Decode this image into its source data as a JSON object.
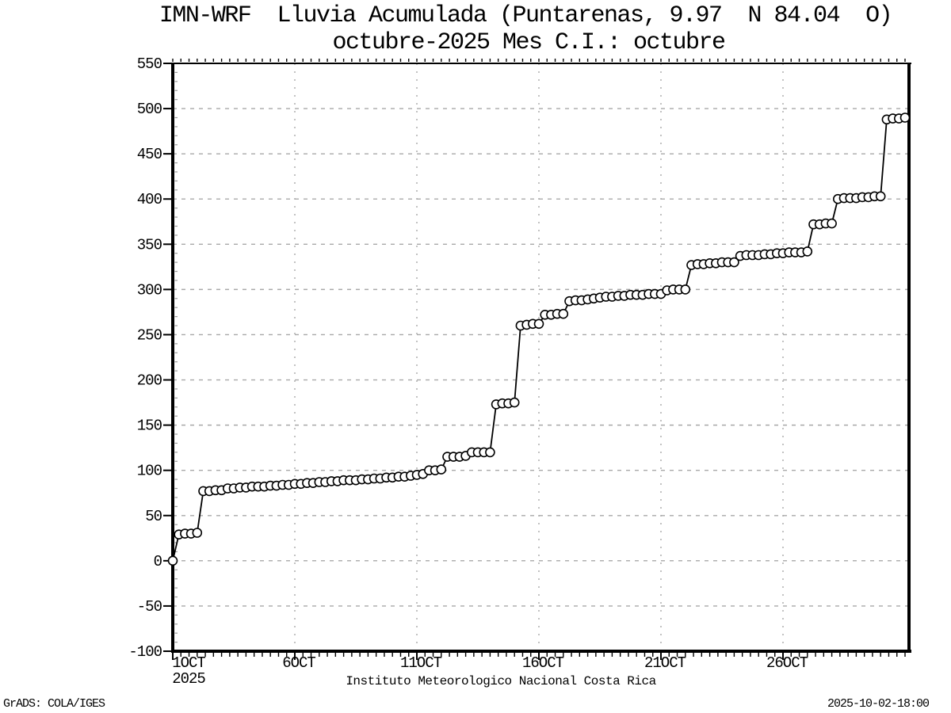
{
  "page": {
    "credit": "GrADS: COLA/IGES",
    "timestamp": "2025-10-02-18:00"
  },
  "chart_data": {
    "type": "line",
    "title": "IMN-WRF  Lluvia Acumulada (Puntarenas, 9.97  N 84.04  O)",
    "subtitle": "octubre-2025 Mes C.I.: octubre",
    "xlabel": "Instituto Meteorologico Nacional Costa Rica",
    "ylabel": "",
    "legend_position": "none",
    "x_axis": {
      "unit": "date",
      "tick_labels": [
        "1OCT",
        "6OCT",
        "11OCT",
        "16OCT",
        "21OCT",
        "26OCT"
      ],
      "tick_days": [
        0,
        5,
        10,
        15,
        20,
        25
      ],
      "year_sublabel": "2025",
      "range_days": [
        0,
        30.2
      ],
      "minor_tick_interval_days": 0.3333
    },
    "y_axis": {
      "ticks": [
        -100,
        -50,
        0,
        50,
        100,
        150,
        200,
        250,
        300,
        350,
        400,
        450,
        500,
        550
      ],
      "range": [
        -100,
        550
      ],
      "minor_tick_interval": 10
    },
    "grid": {
      "horizontal": [
        -50,
        0,
        50,
        100,
        150,
        200,
        250,
        300,
        350,
        400,
        450,
        500
      ],
      "vertical_days": [
        5,
        10,
        15,
        20,
        25
      ],
      "color": "#a8a8a8"
    },
    "series": [
      {
        "name": "lluvia-acumulada-mm",
        "marker": "open-circle",
        "color": "#000000",
        "x_start_day": 0,
        "x_step_days": 0.25,
        "values": [
          0,
          29,
          30,
          30,
          31,
          77,
          77,
          78,
          78,
          80,
          80,
          81,
          81,
          82,
          82,
          82,
          83,
          83,
          84,
          84,
          85,
          85,
          86,
          86,
          87,
          87,
          88,
          88,
          89,
          89,
          89,
          90,
          90,
          91,
          91,
          92,
          92,
          93,
          93,
          94,
          95,
          96,
          100,
          100,
          101,
          115,
          115,
          115,
          116,
          120,
          120,
          120,
          120,
          173,
          174,
          174,
          175,
          260,
          261,
          262,
          262,
          272,
          272,
          273,
          273,
          287,
          288,
          288,
          289,
          290,
          291,
          292,
          292,
          293,
          293,
          294,
          294,
          294,
          295,
          295,
          295,
          299,
          300,
          300,
          300,
          327,
          328,
          328,
          329,
          329,
          330,
          330,
          330,
          337,
          338,
          338,
          338,
          339,
          339,
          340,
          340,
          341,
          341,
          341,
          342,
          372,
          372,
          373,
          373,
          400,
          401,
          401,
          401,
          402,
          402,
          403,
          403,
          488,
          489,
          489,
          490
        ]
      }
    ]
  }
}
